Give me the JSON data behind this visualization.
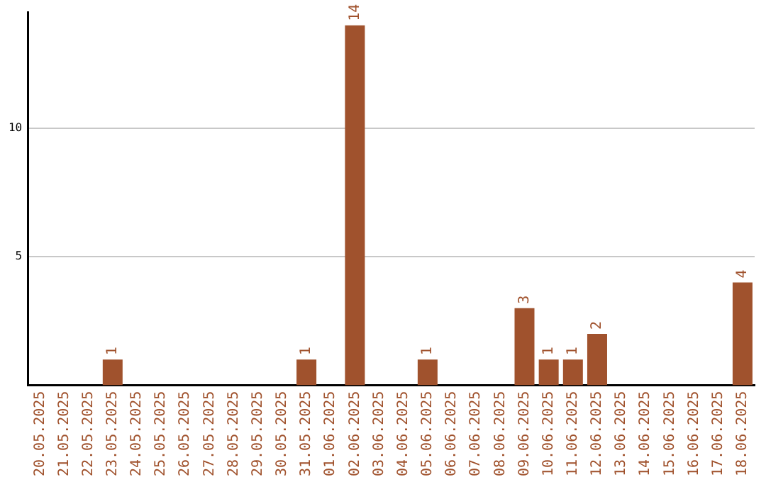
{
  "chart_data": {
    "type": "bar",
    "categories": [
      "20.05.2025",
      "21.05.2025",
      "22.05.2025",
      "23.05.2025",
      "24.05.2025",
      "25.05.2025",
      "26.05.2025",
      "27.05.2025",
      "28.05.2025",
      "29.05.2025",
      "30.05.2025",
      "31.05.2025",
      "01.06.2025",
      "02.06.2025",
      "03.06.2025",
      "04.06.2025",
      "05.06.2025",
      "06.06.2025",
      "07.06.2025",
      "08.06.2025",
      "09.06.2025",
      "10.06.2025",
      "11.06.2025",
      "12.06.2025",
      "13.06.2025",
      "14.06.2025",
      "15.06.2025",
      "16.06.2025",
      "17.06.2025",
      "18.06.2025"
    ],
    "values": [
      0,
      0,
      0,
      1,
      0,
      0,
      0,
      0,
      0,
      0,
      0,
      1,
      0,
      14,
      0,
      0,
      1,
      0,
      0,
      0,
      3,
      1,
      1,
      2,
      0,
      0,
      0,
      0,
      0,
      4
    ],
    "value_labels": [
      null,
      null,
      null,
      "1",
      null,
      null,
      null,
      null,
      null,
      null,
      null,
      "1",
      null,
      "14",
      null,
      null,
      "1",
      null,
      null,
      null,
      "3",
      "1",
      "1",
      "2",
      null,
      null,
      null,
      null,
      null,
      "4"
    ],
    "color": "#a0522d",
    "ylim": [
      0,
      14.5
    ],
    "yticks": [
      5,
      10
    ],
    "grid": "y",
    "legend": false
  }
}
